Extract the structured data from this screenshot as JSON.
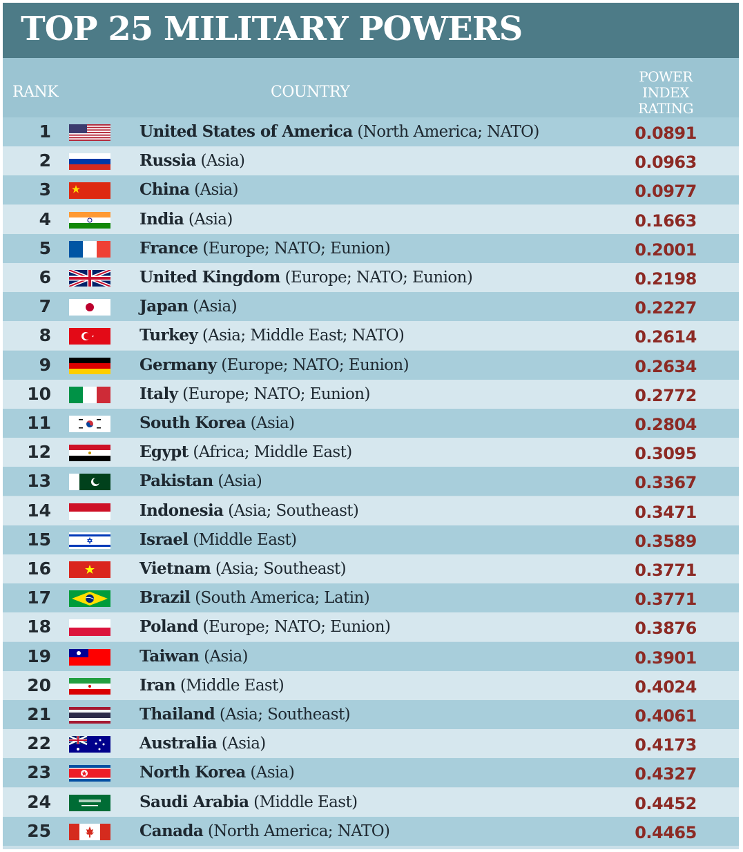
{
  "title": "TOP 25 MILITARY POWERS",
  "colors": {
    "title_bar": "#4d7b87",
    "row_dark": "#a8cedb",
    "row_light": "#d6e7ee",
    "rating_text": "#8c2a24"
  },
  "chart_data": {
    "type": "table",
    "title": "TOP 25 MILITARY POWERS",
    "columns": [
      "RANK",
      "COUNTRY",
      "POWER INDEX RATING"
    ],
    "rows": [
      {
        "rank": "1",
        "country": "United States of America",
        "region": " (North America; NATO)",
        "flag": "usa-flag-icon",
        "rating": "0.0891"
      },
      {
        "rank": "2",
        "country": "Russia",
        "region": " (Asia)",
        "flag": "russia-flag-icon",
        "rating": "0.0963"
      },
      {
        "rank": "3",
        "country": "China",
        "region": " (Asia)",
        "flag": "china-flag-icon",
        "rating": "0.0977"
      },
      {
        "rank": "4",
        "country": "India",
        "region": " (Asia)",
        "flag": "india-flag-icon",
        "rating": "0.1663"
      },
      {
        "rank": "5",
        "country": "France",
        "region": " (Europe; NATO; Eunion)",
        "flag": "france-flag-icon",
        "rating": "0.2001"
      },
      {
        "rank": "6",
        "country": "United Kingdom",
        "region": " (Europe; NATO; Eunion)",
        "flag": "uk-flag-icon",
        "rating": "0.2198"
      },
      {
        "rank": "7",
        "country": "Japan",
        "region": " (Asia)",
        "flag": "japan-flag-icon",
        "rating": "0.2227"
      },
      {
        "rank": "8",
        "country": "Turkey",
        "region": " (Asia; Middle East; NATO)",
        "flag": "turkey-flag-icon",
        "rating": "0.2614"
      },
      {
        "rank": "9",
        "country": "Germany",
        "region": " (Europe; NATO; Eunion)",
        "flag": "germany-flag-icon",
        "rating": "0.2634"
      },
      {
        "rank": "10",
        "country": "Italy",
        "region": " (Europe; NATO; Eunion)",
        "flag": "italy-flag-icon",
        "rating": "0.2772"
      },
      {
        "rank": "11",
        "country": "South Korea",
        "region": " (Asia)",
        "flag": "south-korea-flag-icon",
        "rating": "0.2804"
      },
      {
        "rank": "12",
        "country": "Egypt",
        "region": " (Africa; Middle East)",
        "flag": "egypt-flag-icon",
        "rating": "0.3095"
      },
      {
        "rank": "13",
        "country": "Pakistan",
        "region": " (Asia)",
        "flag": "pakistan-flag-icon",
        "rating": "0.3367"
      },
      {
        "rank": "14",
        "country": "Indonesia",
        "region": " (Asia; Southeast)",
        "flag": "indonesia-flag-icon",
        "rating": "0.3471"
      },
      {
        "rank": "15",
        "country": "Israel",
        "region": " (Middle East)",
        "flag": "israel-flag-icon",
        "rating": "0.3589"
      },
      {
        "rank": "16",
        "country": "Vietnam",
        "region": " (Asia; Southeast)",
        "flag": "vietnam-flag-icon",
        "rating": "0.3771"
      },
      {
        "rank": "17",
        "country": "Brazil",
        "region": " (South America; Latin)",
        "flag": "brazil-flag-icon",
        "rating": "0.3771"
      },
      {
        "rank": "18",
        "country": "Poland",
        "region": " (Europe; NATO; Eunion)",
        "flag": "poland-flag-icon",
        "rating": "0.3876"
      },
      {
        "rank": "19",
        "country": "Taiwan",
        "region": " (Asia)",
        "flag": "taiwan-flag-icon",
        "rating": "0.3901"
      },
      {
        "rank": "20",
        "country": "Iran",
        "region": " (Middle East)",
        "flag": "iran-flag-icon",
        "rating": "0.4024"
      },
      {
        "rank": "21",
        "country": "Thailand",
        "region": " (Asia; Southeast)",
        "flag": "thailand-flag-icon",
        "rating": "0.4061"
      },
      {
        "rank": "22",
        "country": "Australia",
        "region": " (Asia)",
        "flag": "australia-flag-icon",
        "rating": "0.4173"
      },
      {
        "rank": "23",
        "country": "North Korea",
        "region": " (Asia)",
        "flag": "north-korea-flag-icon",
        "rating": "0.4327"
      },
      {
        "rank": "24",
        "country": "Saudi Arabia",
        "region": " (Middle East)",
        "flag": "saudi-arabia-flag-icon",
        "rating": "0.4452"
      },
      {
        "rank": "25",
        "country": "Canada",
        "region": " (North America; NATO)",
        "flag": "canada-flag-icon",
        "rating": "0.4465"
      }
    ]
  }
}
